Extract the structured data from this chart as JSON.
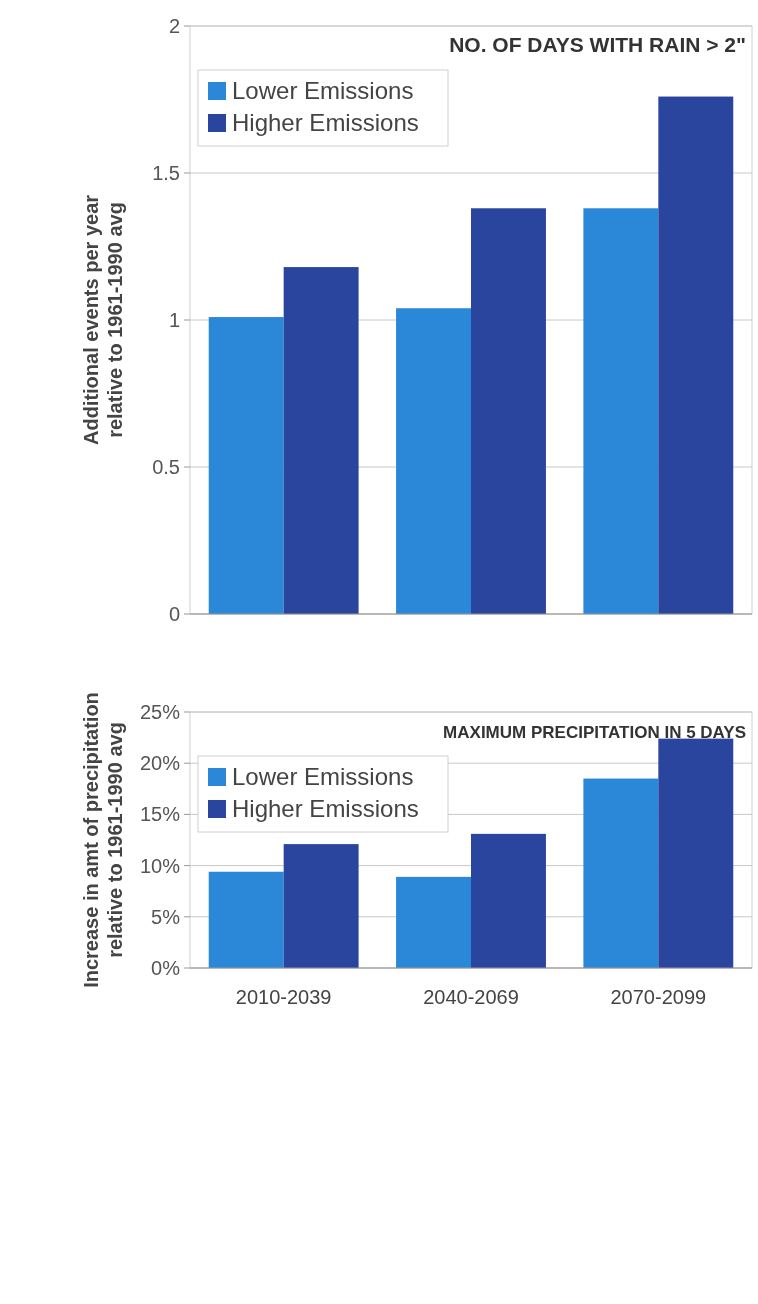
{
  "chart_data": [
    {
      "type": "bar",
      "title": "NO. OF DAYS WITH RAIN > 2\"",
      "ylabel": "Additional events per year\nrelative to 1961-1990 avg",
      "categories": [
        null,
        null,
        null
      ],
      "series": [
        {
          "name": "Lower Emissions",
          "color": "#2b87d8",
          "values": [
            1.01,
            1.04,
            1.38
          ]
        },
        {
          "name": "Higher Emissions",
          "color": "#2a459e",
          "values": [
            1.18,
            1.38,
            1.76
          ]
        }
      ],
      "ylim": [
        0,
        2
      ],
      "yticks": [
        0,
        0.5,
        1,
        1.5,
        2
      ],
      "grid": "y",
      "legend": "top left",
      "tick_labels": "y"
    },
    {
      "type": "bar",
      "title": "MAXIMUM PRECIPITATION IN 5 DAYS",
      "ylabel": "Increase in amt of precipitation\nrelative to 1961-1990 avg",
      "categories": [
        "2010-2039",
        "2040-2069",
        "2070-2099"
      ],
      "series": [
        {
          "name": "Lower Emissions",
          "color": "#2b87d8",
          "values": [
            9.4,
            8.9,
            18.5
          ]
        },
        {
          "name": "Higher Emissions",
          "color": "#2a459e",
          "values": [
            12.1,
            13.1,
            22.4
          ]
        }
      ],
      "ylim": [
        0,
        25
      ],
      "yticks": [
        {
          "value": 0,
          "label": "0%"
        },
        {
          "value": 5,
          "label": "5%"
        },
        {
          "value": 10,
          "label": "10%"
        },
        {
          "value": 15,
          "label": "15%"
        },
        {
          "value": 20,
          "label": "20%"
        },
        {
          "value": 25,
          "label": "25%"
        }
      ],
      "grid": "y",
      "legend": "top left"
    }
  ]
}
